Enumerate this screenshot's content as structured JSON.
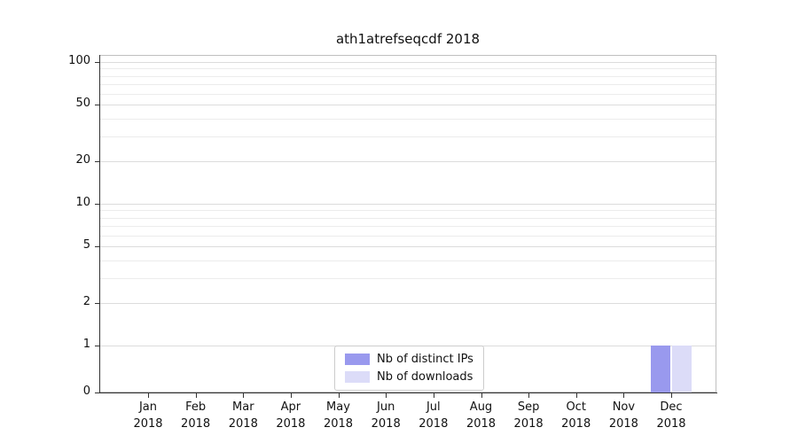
{
  "title": "ath1atrefseqcdf 2018",
  "chart_data": {
    "type": "bar",
    "title": "ath1atrefseqcdf 2018",
    "x_categories": [
      "Jan",
      "Feb",
      "Mar",
      "Apr",
      "May",
      "Jun",
      "Jul",
      "Aug",
      "Sep",
      "Oct",
      "Nov",
      "Dec"
    ],
    "x_year": "2018",
    "y_scale": "symlog",
    "y_ticks": [
      0,
      1,
      2,
      5,
      10,
      20,
      50,
      100
    ],
    "y_minor_ticks": [
      2,
      3,
      4,
      6,
      7,
      8,
      9,
      20,
      30,
      40,
      60,
      70,
      80,
      90
    ],
    "ylim": [
      0,
      110
    ],
    "grid": true,
    "legend_position": "lower center",
    "series": [
      {
        "name": "Nb of distinct IPs",
        "color": "#9999ee",
        "values": [
          0,
          0,
          0,
          0,
          0,
          0,
          0,
          0,
          0,
          0,
          0,
          1
        ]
      },
      {
        "name": "Nb of downloads",
        "color": "#dcdcf8",
        "values": [
          0,
          0,
          0,
          0,
          0,
          0,
          0,
          0,
          0,
          0,
          0,
          1
        ]
      }
    ]
  }
}
